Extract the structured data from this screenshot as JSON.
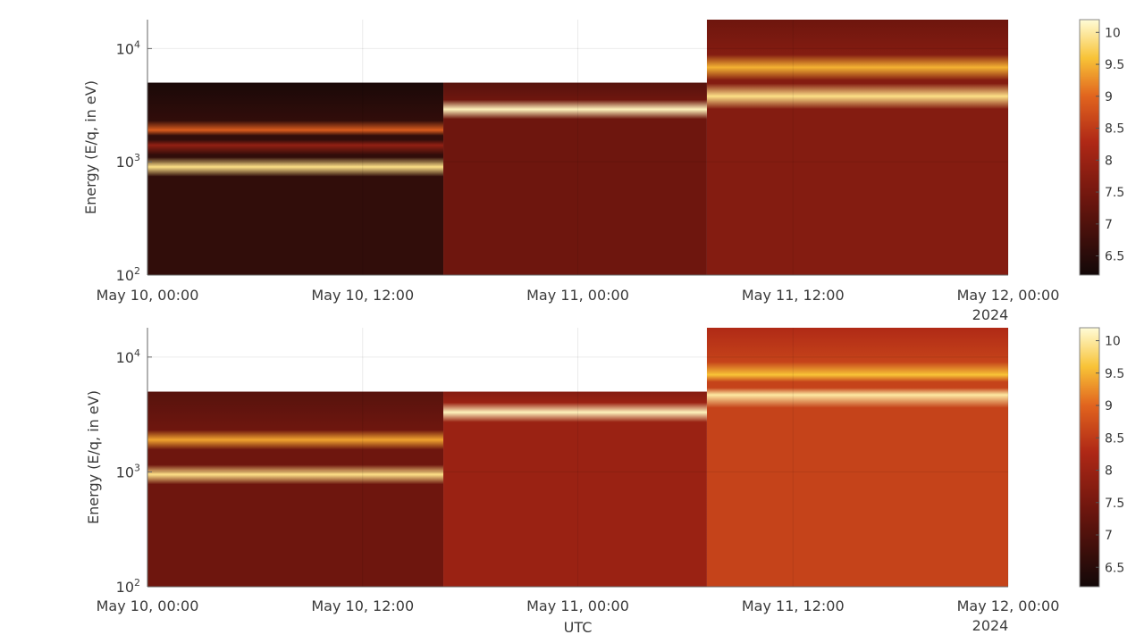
{
  "chart_data": [
    {
      "type": "heatmap",
      "title": "",
      "xlabel": "",
      "ylabel": "Energy (E/q, in eV)",
      "x_tick_labels": [
        "May 10, 00:00",
        "May 10, 12:00",
        "May 11, 00:00",
        "May 11, 12:00",
        "May 12, 00:00"
      ],
      "x_year_label": "2024",
      "xlim_hours": [
        0,
        48
      ],
      "y_scale": "log",
      "ylim": [
        100,
        18000
      ],
      "y_ticks": [
        {
          "value": 100,
          "base": "10",
          "exp": "2"
        },
        {
          "value": 1000,
          "base": "10",
          "exp": "3"
        },
        {
          "value": 10000,
          "base": "10",
          "exp": "4"
        }
      ],
      "colorbar_ticks": [
        "6.5",
        "7",
        "7.5",
        "8",
        "8.5",
        "9",
        "9.5",
        "10"
      ],
      "colorbar_range": [
        6.2,
        10.2
      ],
      "grid": true,
      "segments": [
        {
          "t_start": 0,
          "t_end": 16.5,
          "e_min": 100,
          "e_max": 5000,
          "background_level": 6.6,
          "bands": [
            {
              "energy": 900,
              "level": 9.9
            },
            {
              "energy": 1900,
              "level": 8.9
            },
            {
              "energy": 1400,
              "level": 7.9
            }
          ]
        },
        {
          "t_start": 16.5,
          "t_end": 31.2,
          "e_min": 100,
          "e_max": 5000,
          "background_level": 7.4,
          "bands": [
            {
              "energy": 2900,
              "level": 10.1
            }
          ]
        },
        {
          "t_start": 31.2,
          "t_end": 48,
          "e_min": 100,
          "e_max": 18000,
          "background_level": 7.7,
          "bands": [
            {
              "energy": 3800,
              "level": 9.9
            },
            {
              "energy": 6800,
              "level": 9.5
            }
          ]
        }
      ]
    },
    {
      "type": "heatmap",
      "title": "",
      "xlabel": "UTC",
      "ylabel": "Energy (E/q, in eV)",
      "x_tick_labels": [
        "May 10, 00:00",
        "May 10, 12:00",
        "May 11, 00:00",
        "May 11, 12:00",
        "May 12, 00:00"
      ],
      "x_year_label": "2024",
      "xlim_hours": [
        0,
        48
      ],
      "y_scale": "log",
      "ylim": [
        100,
        18000
      ],
      "y_ticks": [
        {
          "value": 100,
          "base": "10",
          "exp": "2"
        },
        {
          "value": 1000,
          "base": "10",
          "exp": "3"
        },
        {
          "value": 10000,
          "base": "10",
          "exp": "4"
        }
      ],
      "colorbar_ticks": [
        "6.5",
        "7",
        "7.5",
        "8",
        "8.5",
        "9",
        "9.5",
        "10"
      ],
      "colorbar_range": [
        6.2,
        10.2
      ],
      "grid": true,
      "segments": [
        {
          "t_start": 0,
          "t_end": 16.5,
          "e_min": 100,
          "e_max": 5000,
          "background_level": 7.4,
          "bands": [
            {
              "energy": 950,
              "level": 9.9
            },
            {
              "energy": 1900,
              "level": 9.4
            }
          ]
        },
        {
          "t_start": 16.5,
          "t_end": 31.2,
          "e_min": 100,
          "e_max": 5000,
          "background_level": 8.0,
          "bands": [
            {
              "energy": 3300,
              "level": 10.1
            }
          ]
        },
        {
          "t_start": 31.2,
          "t_end": 48,
          "e_min": 100,
          "e_max": 18000,
          "background_level": 8.6,
          "bands": [
            {
              "energy": 4700,
              "level": 10.0
            },
            {
              "energy": 7000,
              "level": 9.6
            }
          ]
        }
      ]
    }
  ]
}
